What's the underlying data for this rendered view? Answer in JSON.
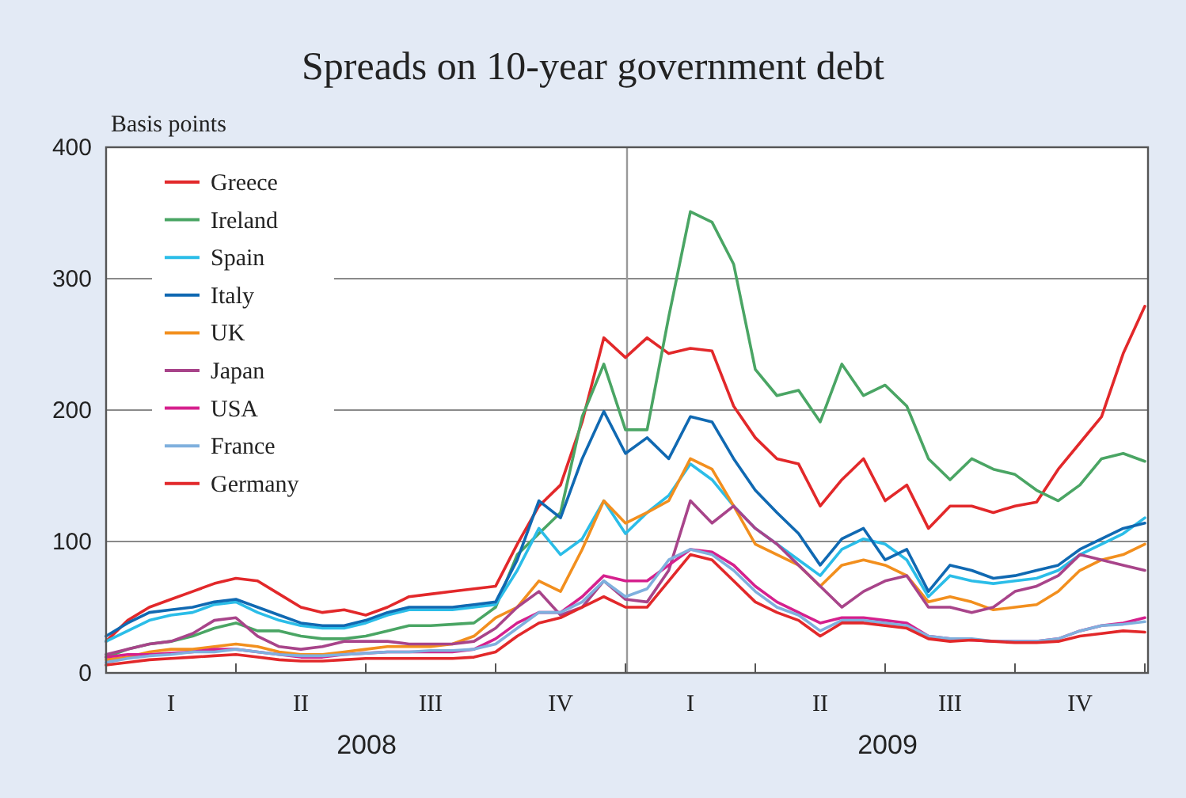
{
  "chart_data": {
    "type": "line",
    "title": "Spreads on 10-year government debt",
    "ylabel": "Basis points",
    "categories": [
      null,
      null,
      null,
      "I",
      null,
      null,
      null,
      null,
      null,
      "II",
      null,
      null,
      null,
      null,
      null,
      "III",
      null,
      null,
      null,
      null,
      null,
      "IV",
      null,
      null,
      null,
      null,
      null,
      "I",
      null,
      null,
      null,
      null,
      null,
      "II",
      null,
      null,
      null,
      null,
      null,
      "III",
      null,
      null,
      null,
      null,
      null,
      "IV",
      null,
      null,
      null
    ],
    "series": [
      {
        "name": "Greece",
        "color": "#e2282a",
        "values": [
          24,
          40,
          50,
          56,
          62,
          68,
          72,
          70,
          60,
          50,
          46,
          48,
          44,
          50,
          58,
          60,
          62,
          64,
          66,
          98,
          127,
          143,
          191,
          255,
          240,
          255,
          243,
          247,
          245,
          203,
          179,
          163,
          159,
          127,
          147,
          163,
          131,
          143,
          110,
          127,
          127,
          122,
          127,
          130,
          155,
          175,
          195,
          243,
          279
        ]
      },
      {
        "name": "Ireland",
        "color": "#4aa564",
        "values": [
          12,
          18,
          22,
          24,
          28,
          34,
          38,
          32,
          32,
          28,
          26,
          26,
          28,
          32,
          36,
          36,
          37,
          38,
          50,
          90,
          106,
          122,
          195,
          235,
          185,
          185,
          271,
          351,
          343,
          311,
          231,
          211,
          215,
          191,
          235,
          211,
          219,
          203,
          163,
          147,
          163,
          155,
          151,
          139,
          131,
          143,
          163,
          167,
          161
        ]
      },
      {
        "name": "Spain",
        "color": "#2bbde8",
        "values": [
          24,
          32,
          40,
          44,
          46,
          52,
          54,
          46,
          40,
          36,
          34,
          34,
          38,
          44,
          48,
          48,
          48,
          50,
          52,
          78,
          110,
          90,
          102,
          131,
          106,
          122,
          135,
          159,
          147,
          127,
          110,
          98,
          86,
          74,
          94,
          102,
          98,
          86,
          58,
          74,
          70,
          68,
          70,
          72,
          78,
          90,
          98,
          106,
          118
        ]
      },
      {
        "name": "Italy",
        "color": "#1069b2",
        "values": [
          28,
          38,
          46,
          48,
          50,
          54,
          56,
          50,
          44,
          38,
          36,
          36,
          40,
          46,
          50,
          50,
          50,
          52,
          54,
          86,
          131,
          118,
          163,
          199,
          167,
          179,
          163,
          195,
          191,
          163,
          139,
          122,
          106,
          82,
          102,
          110,
          86,
          94,
          62,
          82,
          78,
          72,
          74,
          78,
          82,
          94,
          102,
          110,
          114
        ]
      },
      {
        "name": "UK",
        "color": "#f28f1e",
        "values": [
          10,
          12,
          16,
          18,
          18,
          20,
          22,
          20,
          16,
          14,
          14,
          16,
          18,
          20,
          20,
          20,
          22,
          28,
          42,
          50,
          70,
          62,
          94,
          131,
          114,
          122,
          131,
          163,
          155,
          127,
          98,
          90,
          82,
          66,
          82,
          86,
          82,
          74,
          54,
          58,
          54,
          48,
          50,
          52,
          62,
          78,
          86,
          90,
          98
        ]
      },
      {
        "name": "Japan",
        "color": "#a8448a",
        "values": [
          14,
          18,
          22,
          24,
          30,
          40,
          42,
          28,
          20,
          18,
          20,
          24,
          24,
          24,
          22,
          22,
          22,
          24,
          34,
          50,
          62,
          44,
          50,
          70,
          56,
          54,
          78,
          131,
          114,
          127,
          110,
          98,
          82,
          66,
          50,
          62,
          70,
          74,
          50,
          50,
          46,
          50,
          62,
          66,
          74,
          90,
          86,
          82,
          78
        ]
      },
      {
        "name": "USA",
        "color": "#d5208d",
        "values": [
          12,
          14,
          14,
          15,
          16,
          18,
          18,
          16,
          14,
          12,
          12,
          14,
          15,
          16,
          16,
          16,
          16,
          18,
          26,
          38,
          46,
          46,
          58,
          74,
          70,
          70,
          82,
          94,
          92,
          82,
          66,
          54,
          46,
          38,
          42,
          42,
          40,
          38,
          28,
          26,
          25,
          24,
          24,
          24,
          26,
          32,
          36,
          38,
          42
        ]
      },
      {
        "name": "France",
        "color": "#7fb0de",
        "values": [
          8,
          11,
          13,
          14,
          16,
          16,
          18,
          16,
          14,
          13,
          13,
          14,
          15,
          16,
          16,
          17,
          17,
          18,
          22,
          34,
          46,
          46,
          54,
          70,
          58,
          64,
          86,
          94,
          90,
          78,
          62,
          50,
          44,
          32,
          40,
          40,
          38,
          36,
          28,
          26,
          26,
          24,
          24,
          24,
          26,
          32,
          36,
          37,
          39
        ]
      },
      {
        "name": "Germany",
        "color": "#e2282a",
        "values": [
          6,
          8,
          10,
          11,
          12,
          13,
          14,
          12,
          10,
          9,
          9,
          10,
          11,
          11,
          11,
          11,
          11,
          12,
          16,
          28,
          38,
          42,
          50,
          58,
          50,
          50,
          70,
          90,
          86,
          70,
          54,
          46,
          40,
          28,
          38,
          38,
          36,
          34,
          26,
          24,
          25,
          24,
          23,
          23,
          24,
          28,
          30,
          32,
          31
        ]
      }
    ],
    "ylim": [
      0,
      400
    ],
    "yticks": [
      0,
      100,
      200,
      300,
      400
    ],
    "grid": "y",
    "legend": "top left",
    "annotations": [
      "2008",
      "2009"
    ]
  }
}
